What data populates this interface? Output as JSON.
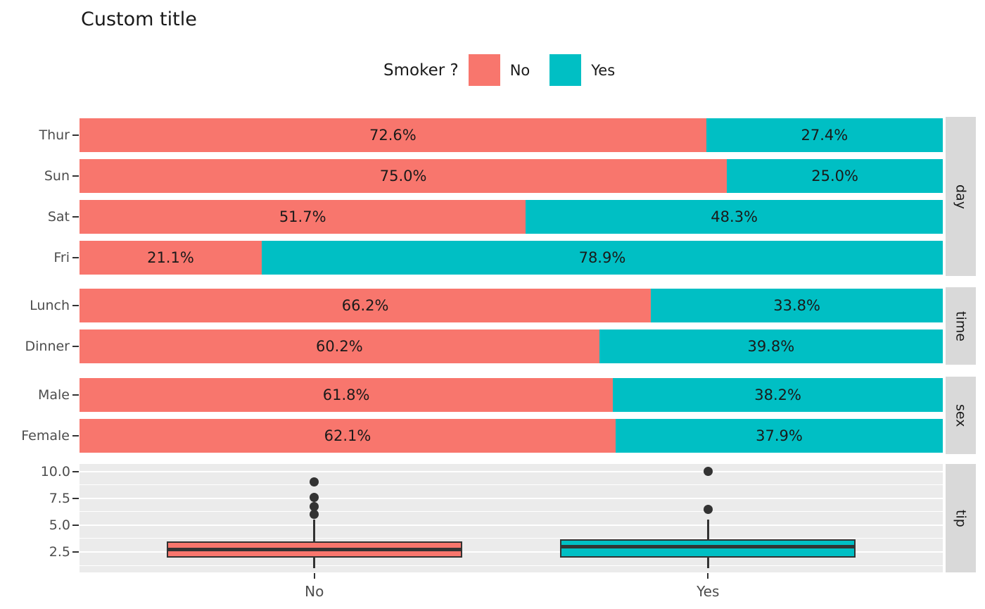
{
  "title": "Custom title",
  "legend": {
    "title": "Smoker ?",
    "items": [
      {
        "label": "No",
        "color": "#F8766D"
      },
      {
        "label": "Yes",
        "color": "#00BFC4"
      }
    ]
  },
  "theme": {
    "no_color": "#F8766D",
    "yes_color": "#00BFC4",
    "panel_bg": "#EBEBEB",
    "strip_bg": "#D9D9D9",
    "grid_color": "#FFFFFF",
    "axis_text_color": "#4D4D4D",
    "dark_color": "#333333",
    "label_color": "#1A1A1A"
  },
  "chart_data": [
    {
      "type": "bar",
      "facet": "day",
      "orientation": "horizontal",
      "stacked": "percent",
      "legend_position": "top",
      "categories": [
        "Thur",
        "Sun",
        "Sat",
        "Fri"
      ],
      "series": [
        {
          "name": "No",
          "values": [
            72.6,
            75.0,
            51.7,
            21.1
          ],
          "labels": [
            "72.6%",
            "75.0%",
            "51.7%",
            "21.1%"
          ]
        },
        {
          "name": "Yes",
          "values": [
            27.4,
            25.0,
            48.3,
            78.9
          ],
          "labels": [
            "27.4%",
            "25.0%",
            "48.3%",
            "78.9%"
          ]
        }
      ]
    },
    {
      "type": "bar",
      "facet": "time",
      "orientation": "horizontal",
      "stacked": "percent",
      "categories": [
        "Lunch",
        "Dinner"
      ],
      "series": [
        {
          "name": "No",
          "values": [
            66.2,
            60.2
          ],
          "labels": [
            "66.2%",
            "60.2%"
          ]
        },
        {
          "name": "Yes",
          "values": [
            33.8,
            39.8
          ],
          "labels": [
            "33.8%",
            "39.8%"
          ]
        }
      ]
    },
    {
      "type": "bar",
      "facet": "sex",
      "orientation": "horizontal",
      "stacked": "percent",
      "categories": [
        "Male",
        "Female"
      ],
      "series": [
        {
          "name": "No",
          "values": [
            61.8,
            62.1
          ],
          "labels": [
            "61.8%",
            "62.1%"
          ]
        },
        {
          "name": "Yes",
          "values": [
            38.2,
            37.9
          ],
          "labels": [
            "38.2%",
            "37.9%"
          ]
        }
      ]
    },
    {
      "type": "boxplot",
      "facet": "tip",
      "categories": [
        "No",
        "Yes"
      ],
      "ylim": [
        0.6,
        10.7
      ],
      "yticks": [
        2.5,
        5.0,
        7.5,
        10.0
      ],
      "ytick_labels": [
        "2.5",
        "5.0",
        "7.5",
        "10.0"
      ],
      "yticks_minor": [
        1.25,
        3.75,
        6.25,
        8.75
      ],
      "grid": true,
      "boxes": [
        {
          "name": "No",
          "color": "#F8766D",
          "whisker_low": 1.0,
          "q1": 2.0,
          "median": 2.74,
          "q3": 3.5,
          "whisker_high": 5.5,
          "outliers": [
            6.0,
            6.73,
            7.58,
            9.0
          ]
        },
        {
          "name": "Yes",
          "color": "#00BFC4",
          "whisker_low": 1.0,
          "q1": 2.0,
          "median": 3.0,
          "q3": 3.68,
          "whisker_high": 5.5,
          "outliers": [
            6.5,
            10.0
          ]
        }
      ]
    }
  ]
}
